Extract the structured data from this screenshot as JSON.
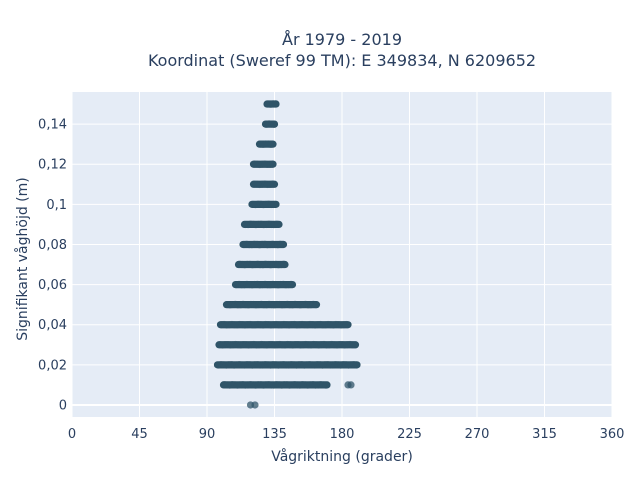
{
  "chart_data": {
    "type": "scatter",
    "title_line1": "År 1979 - 2019",
    "title_line2": "Koordinat (Sweref 99 TM): E 349834, N 6209652",
    "xlabel": "Vågriktning (grader)",
    "ylabel": "Signifikant våghöjd (m)",
    "xlim": [
      0,
      360
    ],
    "ylim": [
      -0.006,
      0.156
    ],
    "xticks": [
      0,
      45,
      90,
      135,
      180,
      225,
      270,
      315,
      360
    ],
    "xtick_labels": [
      "0",
      "45",
      "90",
      "135",
      "180",
      "225",
      "270",
      "315",
      "360"
    ],
    "yticks": [
      0,
      0.02,
      0.04,
      0.06,
      0.08,
      0.1,
      0.12,
      0.14
    ],
    "ytick_labels": [
      "0",
      "0,02",
      "0,04",
      "0,06",
      "0,08",
      "0,1",
      "0,12",
      "0,14"
    ],
    "grid": true,
    "marker_color": "#2f5468",
    "background_color": "#e5ecf6",
    "series": [
      {
        "points": [
          {
            "x": 119,
            "y": 0
          },
          {
            "x": 122,
            "y": 0
          },
          {
            "x": 184,
            "y": 0.01
          },
          {
            "x": 186,
            "y": 0.01
          }
        ],
        "bands": [
          {
            "y": 0.01,
            "x_min": 101,
            "x_max": 170
          },
          {
            "y": 0.02,
            "x_min": 97,
            "x_max": 190
          },
          {
            "y": 0.03,
            "x_min": 98,
            "x_max": 189
          },
          {
            "y": 0.04,
            "x_min": 99,
            "x_max": 184
          },
          {
            "y": 0.05,
            "x_min": 103,
            "x_max": 163
          },
          {
            "y": 0.06,
            "x_min": 109,
            "x_max": 147
          },
          {
            "y": 0.07,
            "x_min": 111,
            "x_max": 142
          },
          {
            "y": 0.08,
            "x_min": 114,
            "x_max": 141
          },
          {
            "y": 0.09,
            "x_min": 115,
            "x_max": 138
          },
          {
            "y": 0.1,
            "x_min": 120,
            "x_max": 136
          },
          {
            "y": 0.11,
            "x_min": 121,
            "x_max": 135
          },
          {
            "y": 0.12,
            "x_min": 121,
            "x_max": 134
          },
          {
            "y": 0.13,
            "x_min": 125,
            "x_max": 134
          },
          {
            "y": 0.14,
            "x_min": 129,
            "x_max": 135
          },
          {
            "y": 0.15,
            "x_min": 130,
            "x_max": 136
          }
        ]
      }
    ]
  }
}
